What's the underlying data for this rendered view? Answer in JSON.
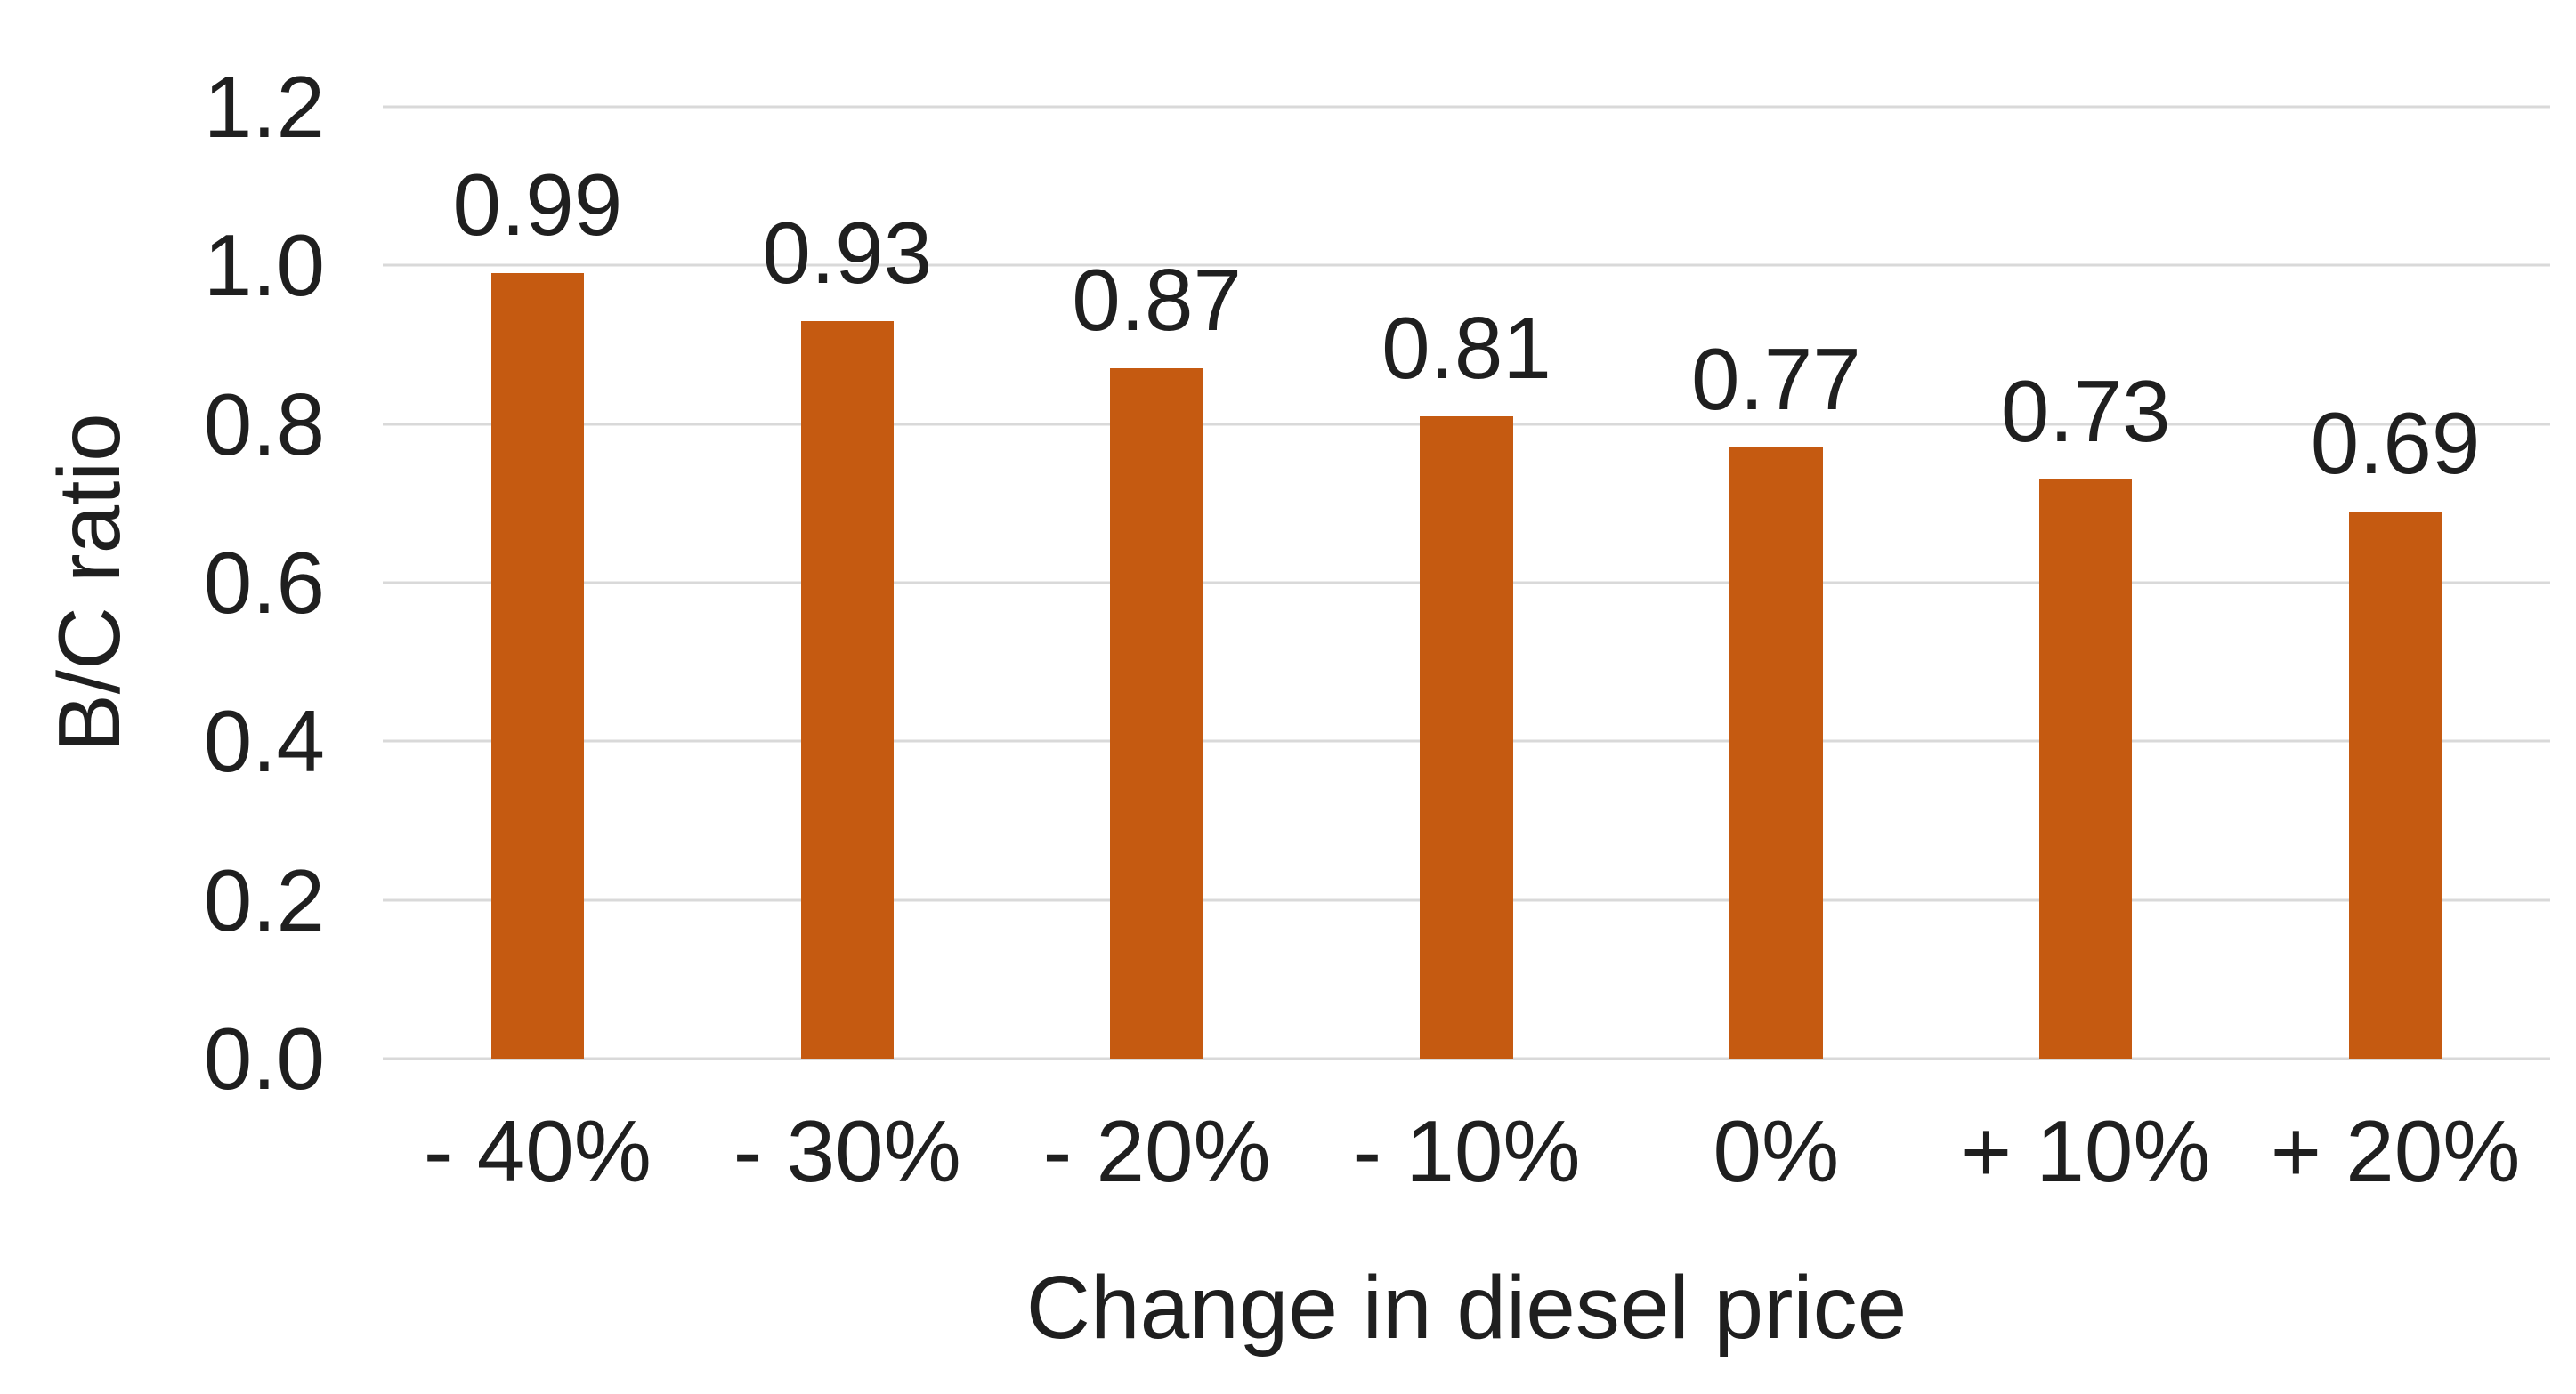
{
  "chart_data": {
    "type": "bar",
    "title": "",
    "categories": [
      "- 40%",
      "- 30%",
      "- 20%",
      "- 10%",
      "0%",
      "+ 10%",
      "+ 20%"
    ],
    "values": [
      0.99,
      0.93,
      0.87,
      0.81,
      0.77,
      0.73,
      0.69
    ],
    "data_labels": [
      "0.99",
      "0.93",
      "0.87",
      "0.81",
      "0.77",
      "0.73",
      "0.69"
    ],
    "xlabel": "Change in diesel price",
    "ylabel": "B/C ratio",
    "ylim": [
      0,
      1.2
    ],
    "yticks": [
      {
        "value": 1.2,
        "label": "1.2"
      },
      {
        "value": 1.0,
        "label": "1.0"
      },
      {
        "value": 0.8,
        "label": "0.8"
      },
      {
        "value": 0.6,
        "label": "0.6"
      },
      {
        "value": 0.4,
        "label": "0.4"
      },
      {
        "value": 0.2,
        "label": "0.2"
      },
      {
        "value": 0.0,
        "label": "0.0"
      }
    ],
    "grid": "horizontal",
    "legend": "none",
    "bar_width_fraction_of_slot": 0.3,
    "colors": {
      "bar": "#C55A11",
      "gridline": "#D9D9D9",
      "text": "#1F1F1F",
      "background": "#FFFFFF"
    }
  }
}
